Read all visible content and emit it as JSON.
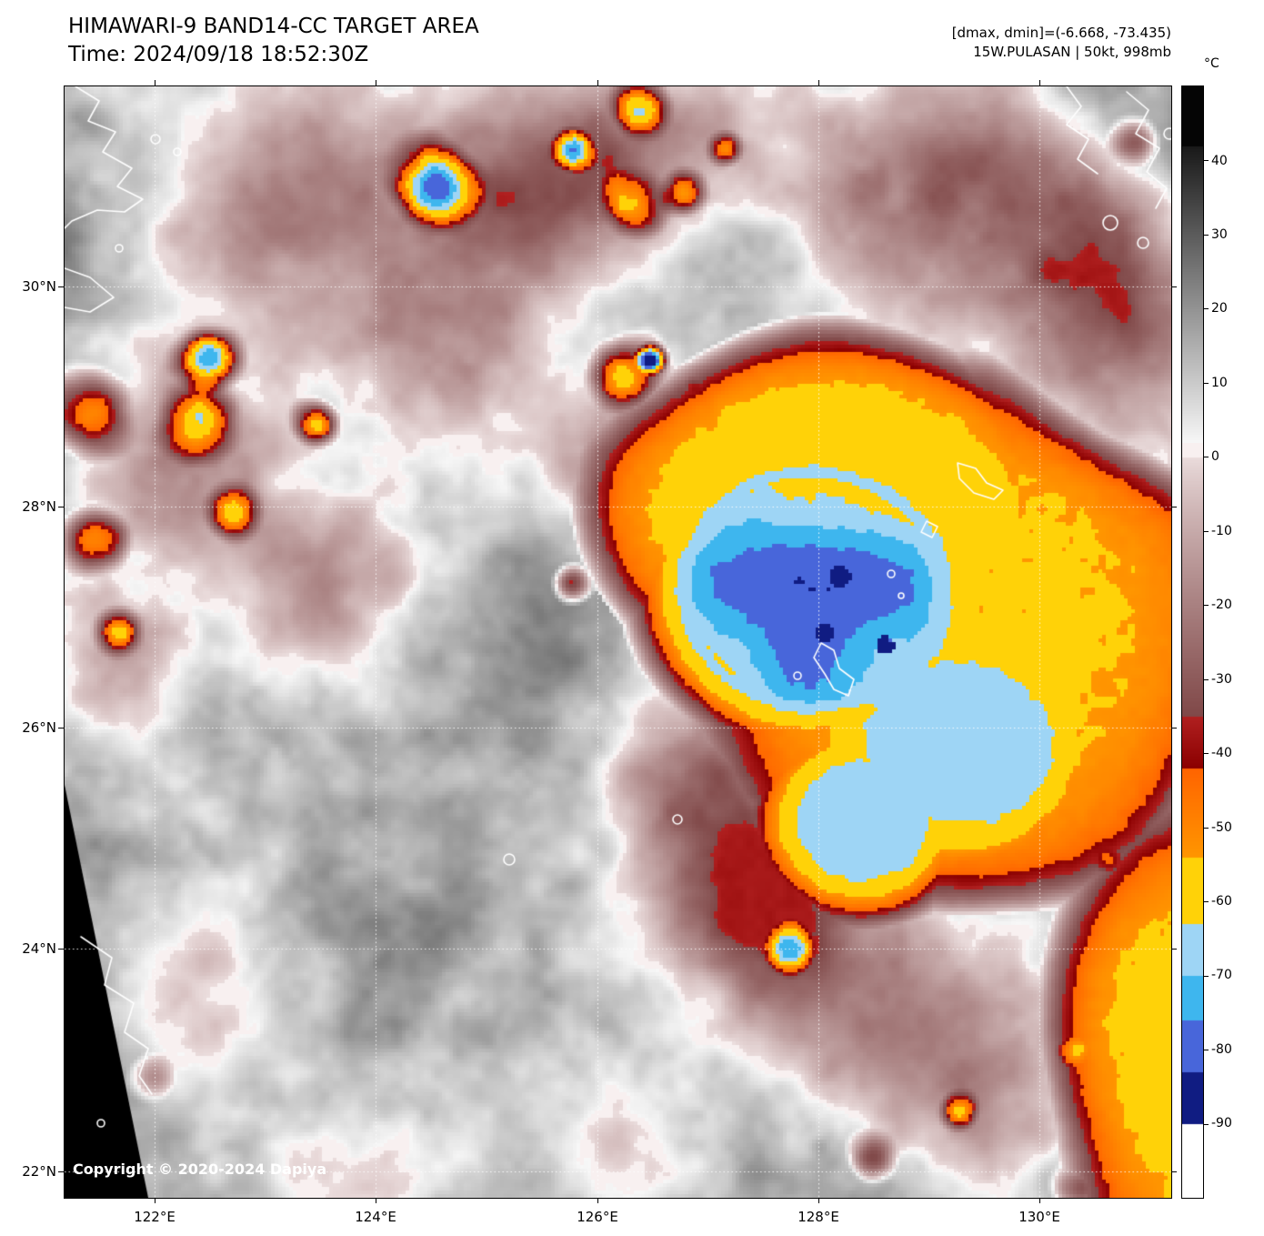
{
  "header": {
    "title": "HIMAWARI-9 BAND14-CC TARGET AREA",
    "time": "Time: 2024/09/18 18:52:30Z",
    "range_info": "[dmax, dmin]=(-6.668, -73.435)",
    "storm_info": "15W.PULASAN | 50kt, 998mb"
  },
  "map": {
    "latitude_labels": [
      "30°N",
      "28°N",
      "26°N",
      "24°N",
      "22°N"
    ],
    "longitude_labels": [
      "122°E",
      "124°E",
      "126°E",
      "128°E",
      "130°E"
    ],
    "copyright": "Copyright © 2020-2024 Dapiya"
  },
  "colorbar": {
    "unit": "°C",
    "tick_labels": [
      "40",
      "30",
      "20",
      "10",
      "0",
      "-10",
      "-20",
      "-30",
      "-40",
      "-50",
      "-60",
      "-70",
      "-80",
      "-90"
    ]
  },
  "chart_data": {
    "type": "heatmap",
    "title": "HIMAWARI-9 BAND14-CC TARGET AREA",
    "time_utc": "2024/09/18 18:52:30Z",
    "dmax": -6.668,
    "dmin": -73.435,
    "storm": {
      "id": "15W",
      "name": "PULASAN",
      "intensity_kt": 50,
      "pressure_mb": 998
    },
    "x_axis": {
      "label": "longitude",
      "ticks": [
        "122°E",
        "124°E",
        "126°E",
        "128°E",
        "130°E"
      ]
    },
    "y_axis": {
      "label": "latitude",
      "ticks": [
        "30°N",
        "28°N",
        "26°N",
        "24°N",
        "22°N"
      ]
    },
    "colorbar": {
      "unit": "°C",
      "max": 50,
      "min": -100,
      "ticks": [
        40,
        30,
        20,
        10,
        0,
        -10,
        -20,
        -30,
        -40,
        -50,
        -60,
        -70,
        -80,
        -90
      ]
    },
    "legend_position": "right",
    "grid": "dotted white lat/lon grid every 2 degrees"
  }
}
